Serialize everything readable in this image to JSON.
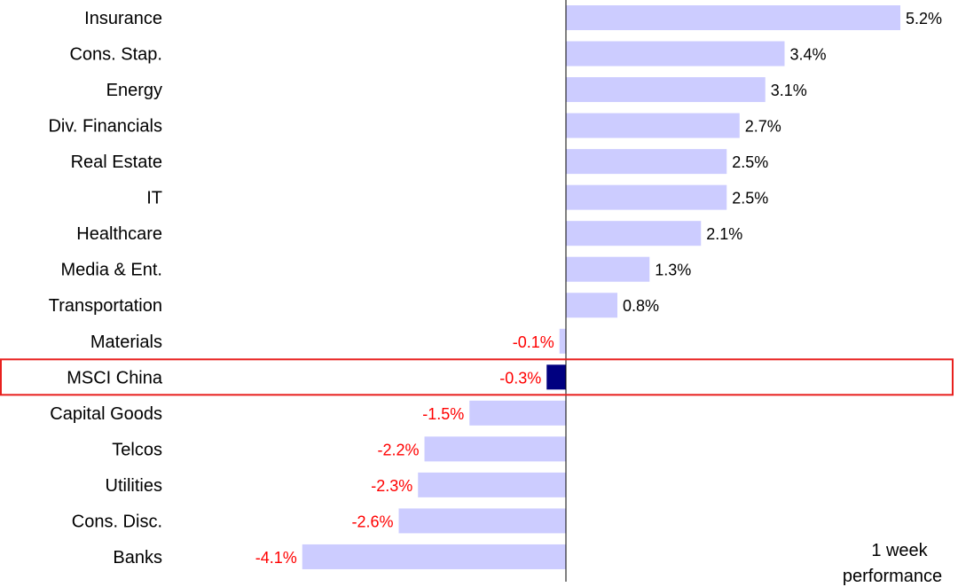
{
  "chart_data": {
    "type": "bar",
    "orientation": "horizontal",
    "categories": [
      "Insurance",
      "Cons. Stap.",
      "Energy",
      "Div. Financials",
      "Real Estate",
      "IT",
      "Healthcare",
      "Media & Ent.",
      "Transportation",
      "Materials",
      "MSCI China",
      "Capital Goods",
      "Telcos",
      "Utilities",
      "Cons. Disc.",
      "Banks"
    ],
    "values": [
      5.2,
      3.4,
      3.1,
      2.7,
      2.5,
      2.5,
      2.1,
      1.3,
      0.8,
      -0.1,
      -0.3,
      -1.5,
      -2.2,
      -2.3,
      -2.6,
      -4.1
    ],
    "value_labels": [
      "5.2%",
      "3.4%",
      "3.1%",
      "2.7%",
      "2.5%",
      "2.5%",
      "2.1%",
      "1.3%",
      "0.8%",
      "-0.1%",
      "-0.3%",
      "-1.5%",
      "-2.2%",
      "-2.3%",
      "-2.6%",
      "-4.1%"
    ],
    "highlight_category": "MSCI China",
    "annotation": [
      "1 week",
      "performance"
    ],
    "title": "",
    "xlabel": "",
    "ylabel": "",
    "xlim": [
      -4.66,
      6.22
    ],
    "grid": false,
    "legend": "none",
    "colors": {
      "bar": "#ccccff",
      "highlight_bar": "#000080",
      "highlight_box": "#e8201e",
      "positive_label": "#000000",
      "negative_label": "#ff0000",
      "axis": "#000000"
    }
  }
}
